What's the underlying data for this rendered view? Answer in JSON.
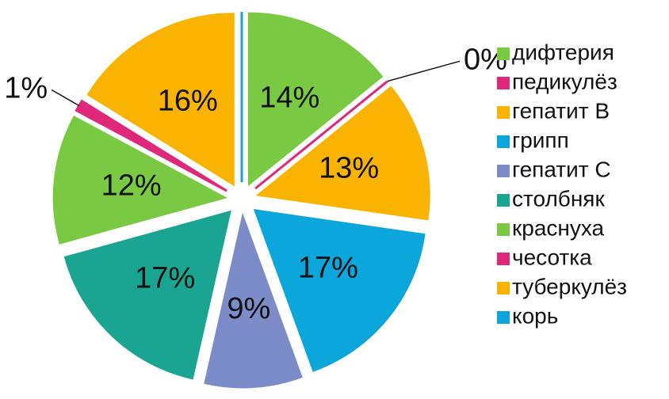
{
  "chart_data": {
    "type": "pie",
    "categories": [
      "дифтерия",
      "педикулёз",
      "гепатит B",
      "грипп",
      "гепатит C",
      "столбняк",
      "краснуха",
      "чесотка",
      "туберкулёз",
      "корь"
    ],
    "values": [
      14,
      0,
      13,
      17,
      9,
      17,
      12,
      1,
      16,
      0
    ],
    "value_labels": [
      "14%",
      "0%",
      "13%",
      "17%",
      "9%",
      "17%",
      "12%",
      "1%",
      "16%",
      null
    ],
    "colors": [
      "#7ac943",
      "#e0287a",
      "#f9b300",
      "#0aa6dc",
      "#7b8cc8",
      "#1aa593",
      "#7ac943",
      "#e0287a",
      "#f9b300",
      "#0aa6dc"
    ],
    "legend": "right"
  }
}
